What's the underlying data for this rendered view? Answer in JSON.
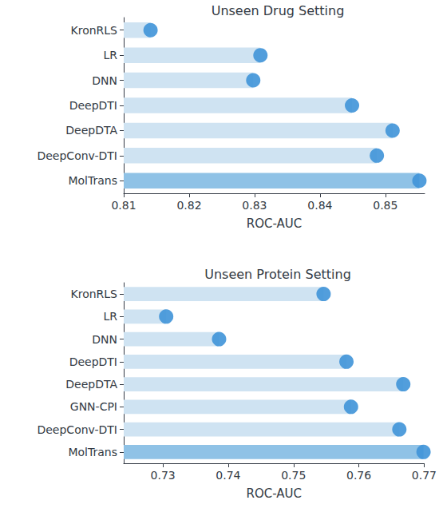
{
  "chart_data": [
    {
      "type": "bar",
      "orientation": "horizontal",
      "title": "Unseen Drug Setting",
      "x_label": "ROC-AUC",
      "categories": [
        "KronRLS",
        "LR",
        "DNN",
        "DeepDTI",
        "DeepDTA",
        "DeepConv-DTI",
        "MolTrans"
      ],
      "values": [
        0.8141,
        0.8309,
        0.8298,
        0.8449,
        0.8511,
        0.8487,
        0.8552
      ],
      "colors": [
        "#cfe3f2",
        "#cfe3f2",
        "#cfe3f2",
        "#cfe3f2",
        "#cfe3f2",
        "#cfe3f2",
        "#8fc2e6"
      ],
      "color": "#3f93d8",
      "marker": "circle",
      "xlim": [
        0.81,
        0.856
      ],
      "xticks": [
        0.81,
        0.82,
        0.83,
        0.84,
        0.85
      ],
      "grid": false
    },
    {
      "type": "bar",
      "orientation": "horizontal",
      "title": "Unseen Protein Setting",
      "x_label": "ROC-AUC",
      "categories": [
        "KronRLS",
        "LR",
        "DNN",
        "DeepDTI",
        "DeepDTA",
        "GNN-CPI",
        "DeepConv-DTI",
        "MolTrans"
      ],
      "values": [
        0.7546,
        0.7305,
        0.7386,
        0.7581,
        0.7668,
        0.7588,
        0.7662,
        0.7699
      ],
      "colors": [
        "#cfe3f2",
        "#cfe3f2",
        "#cfe3f2",
        "#cfe3f2",
        "#cfe3f2",
        "#cfe3f2",
        "#cfe3f2",
        "#8fc2e6"
      ],
      "color": "#3f93d8",
      "marker": "circle",
      "xlim": [
        0.724,
        0.77
      ],
      "xticks": [
        0.73,
        0.74,
        0.75,
        0.76,
        0.77
      ],
      "grid": false
    }
  ]
}
